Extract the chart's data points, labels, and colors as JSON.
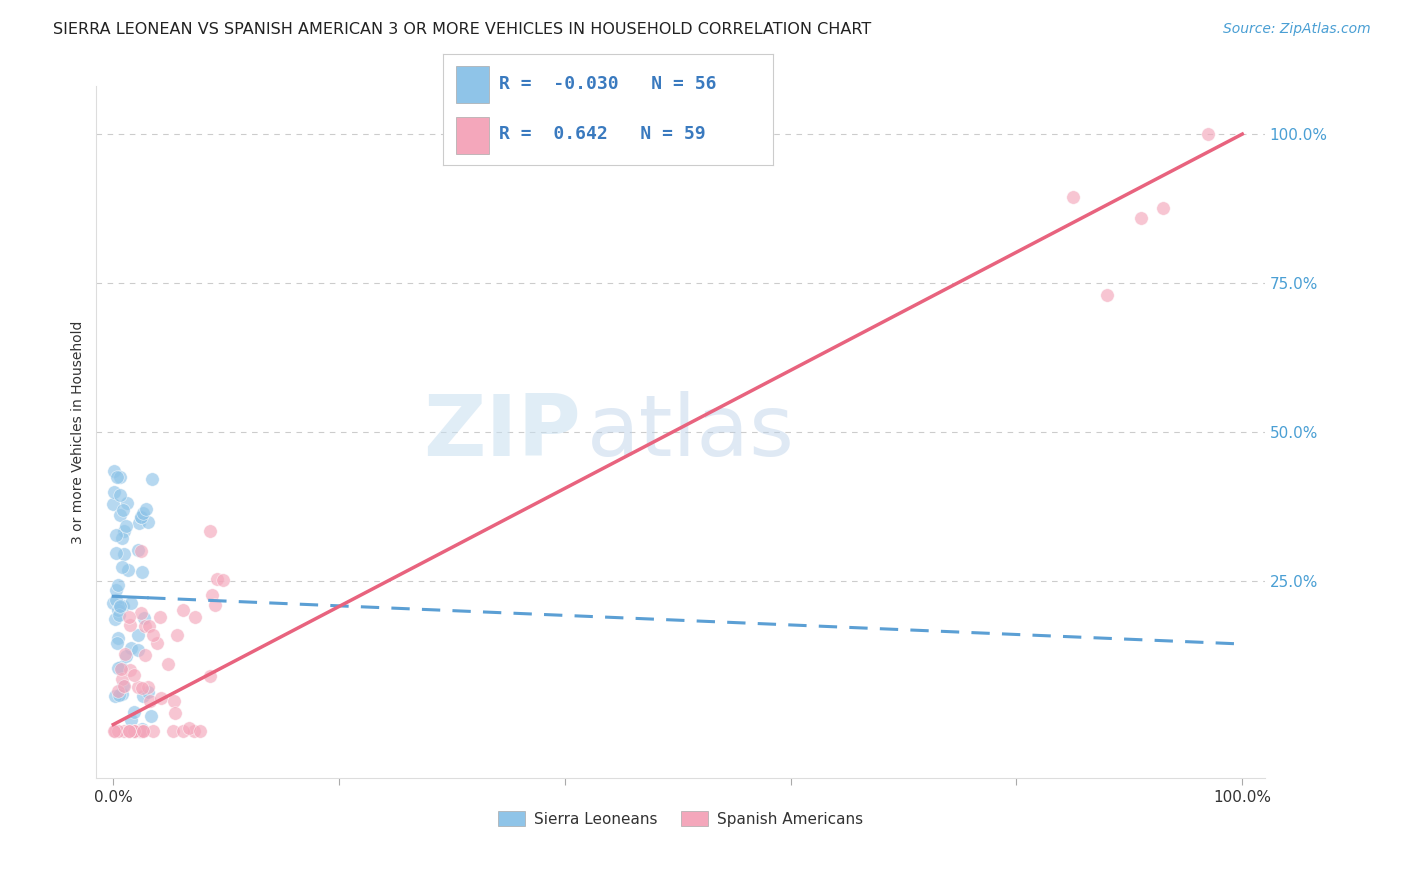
{
  "title": "SIERRA LEONEAN VS SPANISH AMERICAN 3 OR MORE VEHICLES IN HOUSEHOLD CORRELATION CHART",
  "source": "Source: ZipAtlas.com",
  "ylabel": "3 or more Vehicles in Household",
  "watermark_zip": "ZIP",
  "watermark_atlas": "atlas",
  "legend_labels": [
    "Sierra Leoneans",
    "Spanish Americans"
  ],
  "blue_color": "#8fc4e8",
  "pink_color": "#f4a7bb",
  "blue_line_color": "#5b9fd4",
  "pink_line_color": "#e8637e",
  "blue_R": -0.03,
  "blue_N": 56,
  "pink_R": 0.642,
  "pink_N": 59,
  "grid_color": "#cccccc",
  "background_color": "#ffffff",
  "title_fontsize": 11.5,
  "axis_label_fontsize": 10,
  "tick_fontsize": 11,
  "legend_fontsize": 11,
  "source_fontsize": 10,
  "blue_line_intercept_pct": 22.5,
  "blue_line_slope_pct": -0.08,
  "pink_line_intercept_pct": 1.0,
  "pink_line_slope_pct": 0.99
}
